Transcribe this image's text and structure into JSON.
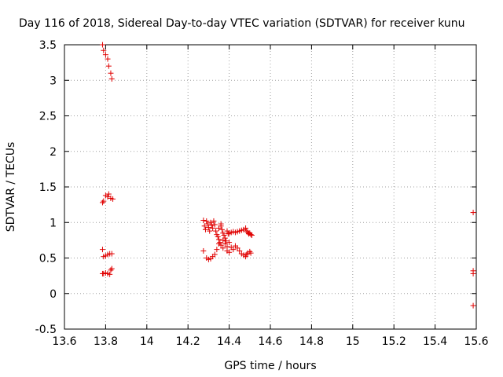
{
  "chart_data": {
    "type": "scatter",
    "title": "Day 116 of 2018, Sidereal Day-to-day VTEC variation (SDTVAR) for receiver kunu",
    "xlabel": "GPS time / hours",
    "ylabel": "SDTVAR / TECUs",
    "xlim": [
      13.6,
      15.6
    ],
    "ylim": [
      -0.5,
      3.5
    ],
    "xticks": [
      "13.6",
      "13.8",
      "14",
      "14.2",
      "14.4",
      "14.6",
      "14.8",
      "15",
      "15.2",
      "15.4",
      "15.6"
    ],
    "yticks": [
      "-0.5",
      "0",
      "0.5",
      "1",
      "1.5",
      "2",
      "2.5",
      "3",
      "3.5"
    ],
    "grid": true,
    "marker": "plus",
    "color": "#e00000",
    "series": [
      {
        "name": "SDTVAR",
        "points": [
          [
            13.785,
            3.5
          ],
          [
            13.79,
            3.42
          ],
          [
            13.8,
            3.36
          ],
          [
            13.81,
            3.3
          ],
          [
            13.815,
            3.2
          ],
          [
            13.825,
            3.1
          ],
          [
            13.83,
            3.02
          ],
          [
            13.785,
            1.28
          ],
          [
            13.79,
            1.3
          ],
          [
            13.8,
            1.38
          ],
          [
            13.81,
            1.36
          ],
          [
            13.815,
            1.4
          ],
          [
            13.825,
            1.34
          ],
          [
            13.835,
            1.33
          ],
          [
            13.785,
            0.62
          ],
          [
            13.79,
            0.52
          ],
          [
            13.8,
            0.53
          ],
          [
            13.81,
            0.55
          ],
          [
            13.82,
            0.56
          ],
          [
            13.83,
            0.56
          ],
          [
            13.785,
            0.28
          ],
          [
            13.79,
            0.28
          ],
          [
            13.8,
            0.29
          ],
          [
            13.81,
            0.28
          ],
          [
            13.82,
            0.27
          ],
          [
            13.825,
            0.33
          ],
          [
            13.83,
            0.35
          ],
          [
            14.275,
            1.03
          ],
          [
            14.28,
            0.95
          ],
          [
            14.285,
            0.9
          ],
          [
            14.29,
            1.02
          ],
          [
            14.295,
            0.98
          ],
          [
            14.3,
            0.93
          ],
          [
            14.305,
            0.88
          ],
          [
            14.31,
            1.0
          ],
          [
            14.315,
            0.96
          ],
          [
            14.32,
            0.92
          ],
          [
            14.325,
            1.02
          ],
          [
            14.33,
            0.97
          ],
          [
            14.335,
            0.88
          ],
          [
            14.34,
            0.83
          ],
          [
            14.345,
            0.8
          ],
          [
            14.35,
            0.76
          ],
          [
            14.355,
            0.72
          ],
          [
            14.36,
            0.95
          ],
          [
            14.365,
            0.9
          ],
          [
            14.37,
            0.85
          ],
          [
            14.375,
            0.82
          ],
          [
            14.38,
            0.78
          ],
          [
            14.385,
            0.74
          ],
          [
            14.39,
            0.88
          ],
          [
            14.395,
            0.84
          ],
          [
            14.4,
            0.85
          ],
          [
            14.41,
            0.86
          ],
          [
            14.42,
            0.87
          ],
          [
            14.43,
            0.86
          ],
          [
            14.44,
            0.87
          ],
          [
            14.45,
            0.88
          ],
          [
            14.46,
            0.89
          ],
          [
            14.47,
            0.9
          ],
          [
            14.48,
            0.92
          ],
          [
            14.485,
            0.88
          ],
          [
            14.49,
            0.86
          ],
          [
            14.495,
            0.84
          ],
          [
            14.5,
            0.85
          ],
          [
            14.505,
            0.83
          ],
          [
            14.51,
            0.82
          ],
          [
            14.35,
            0.92
          ],
          [
            14.36,
            0.98
          ],
          [
            14.37,
            0.75
          ],
          [
            14.38,
            0.7
          ],
          [
            14.39,
            0.66
          ],
          [
            14.4,
            0.72
          ],
          [
            14.41,
            0.65
          ],
          [
            14.42,
            0.62
          ],
          [
            14.43,
            0.67
          ],
          [
            14.44,
            0.64
          ],
          [
            14.45,
            0.6
          ],
          [
            14.46,
            0.56
          ],
          [
            14.47,
            0.54
          ],
          [
            14.48,
            0.52
          ],
          [
            14.485,
            0.55
          ],
          [
            14.49,
            0.57
          ],
          [
            14.5,
            0.59
          ],
          [
            14.505,
            0.57
          ],
          [
            14.275,
            0.6
          ],
          [
            14.29,
            0.5
          ],
          [
            14.3,
            0.48
          ],
          [
            14.31,
            0.49
          ],
          [
            14.32,
            0.52
          ],
          [
            14.33,
            0.55
          ],
          [
            14.34,
            0.62
          ],
          [
            14.35,
            0.7
          ],
          [
            14.36,
            0.68
          ],
          [
            14.37,
            0.64
          ],
          [
            14.39,
            0.6
          ],
          [
            14.4,
            0.58
          ],
          [
            15.585,
            1.14
          ],
          [
            15.585,
            0.32
          ],
          [
            15.585,
            0.28
          ],
          [
            15.585,
            -0.17
          ]
        ]
      }
    ]
  }
}
